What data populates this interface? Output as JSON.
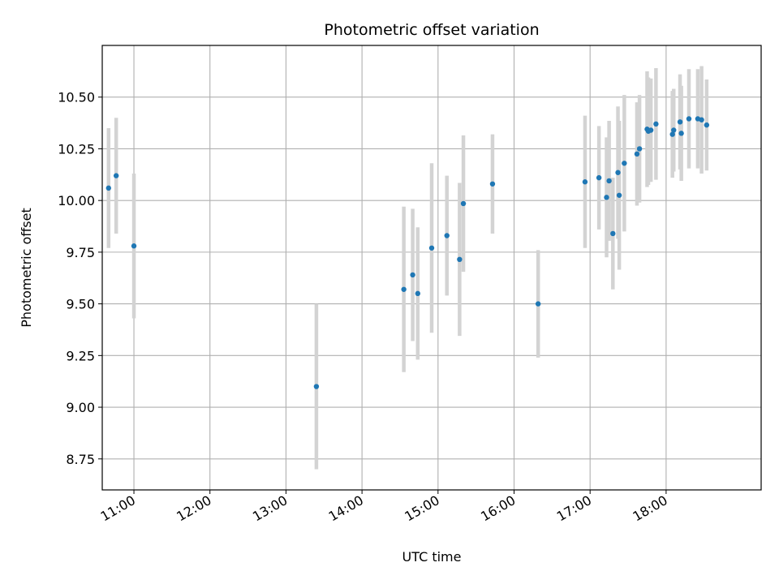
{
  "chart_data": {
    "type": "scatter",
    "title": "Photometric offset variation",
    "xlabel": "UTC time",
    "ylabel": "Photometric offset",
    "x_unit": "UTC time (HH:MM)",
    "xlim": [
      "10:35",
      "19:15"
    ],
    "ylim": [
      8.6,
      10.75
    ],
    "x_ticks": [
      "11:00",
      "12:00",
      "13:00",
      "14:00",
      "15:00",
      "16:00",
      "17:00",
      "18:00"
    ],
    "y_ticks": [
      "8.75",
      "9.00",
      "9.25",
      "9.50",
      "9.75",
      "10.00",
      "10.25",
      "10.50"
    ],
    "grid": true,
    "colors": {
      "point": "#1f77b4",
      "errorbar": "#d3d3d3",
      "grid": "#b0b0b0"
    },
    "points": [
      {
        "t": "10:40",
        "y": 10.06,
        "err": 0.29
      },
      {
        "t": "10:46",
        "y": 10.12,
        "err": 0.28
      },
      {
        "t": "11:00",
        "y": 9.78,
        "err": 0.35
      },
      {
        "t": "13:24",
        "y": 9.1,
        "err": 0.4
      },
      {
        "t": "14:33",
        "y": 9.57,
        "err": 0.4
      },
      {
        "t": "14:40",
        "y": 9.64,
        "err": 0.32
      },
      {
        "t": "14:44",
        "y": 9.55,
        "err": 0.32
      },
      {
        "t": "14:55",
        "y": 9.77,
        "err": 0.41
      },
      {
        "t": "15:07",
        "y": 9.83,
        "err": 0.29
      },
      {
        "t": "15:17",
        "y": 9.715,
        "err": 0.37
      },
      {
        "t": "15:20",
        "y": 9.985,
        "err": 0.33
      },
      {
        "t": "15:43",
        "y": 10.08,
        "err": 0.24
      },
      {
        "t": "16:19",
        "y": 9.5,
        "err": 0.26
      },
      {
        "t": "16:56",
        "y": 10.09,
        "err": 0.32
      },
      {
        "t": "17:07",
        "y": 10.11,
        "err": 0.25
      },
      {
        "t": "17:13",
        "y": 10.015,
        "err": 0.29
      },
      {
        "t": "17:15",
        "y": 10.095,
        "err": 0.29
      },
      {
        "t": "17:18",
        "y": 9.84,
        "err": 0.27
      },
      {
        "t": "17:22",
        "y": 10.135,
        "err": 0.32
      },
      {
        "t": "17:23",
        "y": 10.025,
        "err": 0.36
      },
      {
        "t": "17:27",
        "y": 10.18,
        "err": 0.33
      },
      {
        "t": "17:37",
        "y": 10.225,
        "err": 0.25
      },
      {
        "t": "17:39",
        "y": 10.25,
        "err": 0.26
      },
      {
        "t": "17:45",
        "y": 10.345,
        "err": 0.28
      },
      {
        "t": "17:46",
        "y": 10.335,
        "err": 0.26
      },
      {
        "t": "17:48",
        "y": 10.34,
        "err": 0.25
      },
      {
        "t": "17:52",
        "y": 10.37,
        "err": 0.27
      },
      {
        "t": "18:05",
        "y": 10.32,
        "err": 0.21
      },
      {
        "t": "18:06",
        "y": 10.34,
        "err": 0.2
      },
      {
        "t": "18:11",
        "y": 10.38,
        "err": 0.23
      },
      {
        "t": "18:12",
        "y": 10.325,
        "err": 0.23
      },
      {
        "t": "18:18",
        "y": 10.395,
        "err": 0.24
      },
      {
        "t": "18:25",
        "y": 10.395,
        "err": 0.24
      },
      {
        "t": "18:28",
        "y": 10.39,
        "err": 0.26
      },
      {
        "t": "18:32",
        "y": 10.365,
        "err": 0.22
      }
    ]
  }
}
